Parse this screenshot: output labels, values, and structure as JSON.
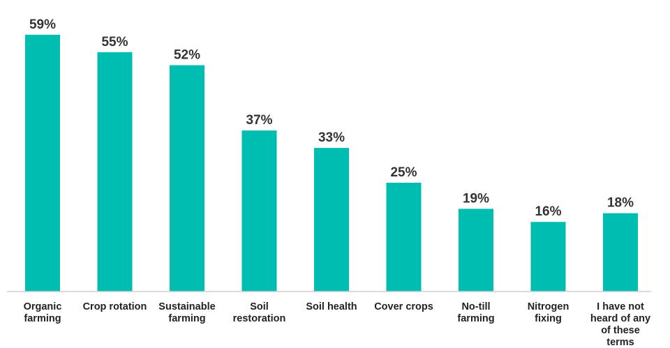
{
  "chart_data": {
    "type": "bar",
    "categories": [
      "Organic farming",
      "Crop rotation",
      "Sustainable farming",
      "Soil restoration",
      "Soil health",
      "Cover crops",
      "No-till farming",
      "Nitrogen fixing",
      "I have not heard of any of these terms"
    ],
    "values": [
      59,
      55,
      52,
      37,
      33,
      25,
      19,
      16,
      18
    ],
    "value_labels": [
      "59%",
      "55%",
      "52%",
      "37%",
      "33%",
      "25%",
      "19%",
      "16%",
      "18%"
    ],
    "title": "",
    "xlabel": "",
    "ylabel": "",
    "ylim": [
      0,
      64
    ],
    "grid": false,
    "bar_color": "#00BDB2"
  }
}
